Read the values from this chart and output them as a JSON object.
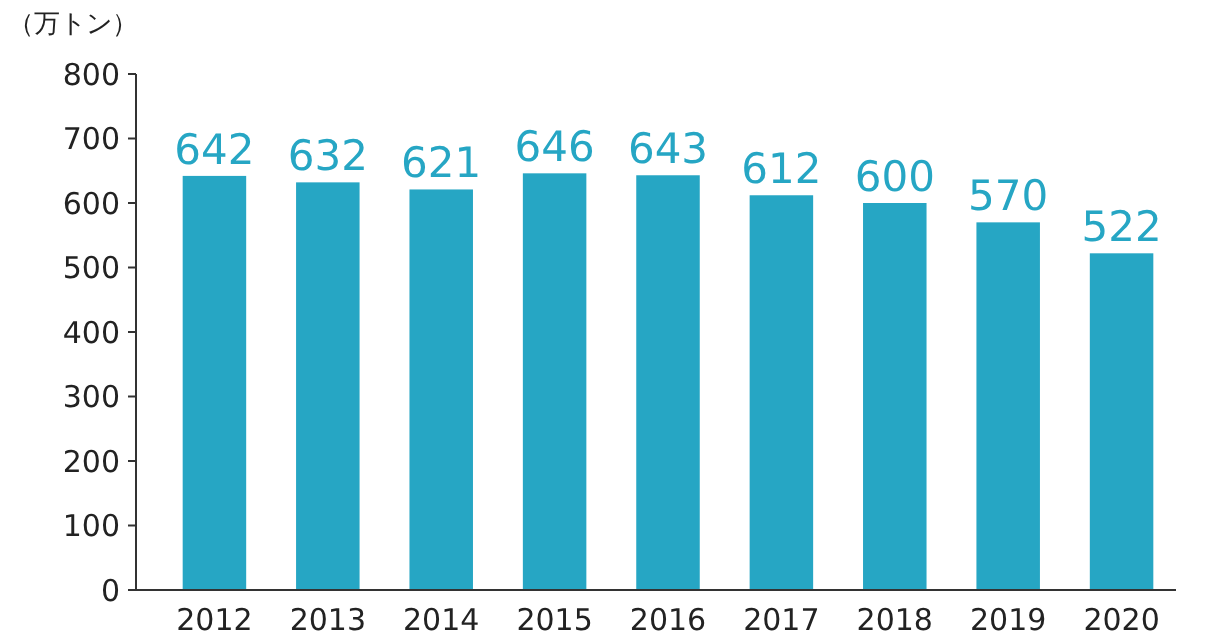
{
  "chart_data": {
    "type": "bar",
    "ylabel": "（万トン）",
    "categories": [
      "2012",
      "2013",
      "2014",
      "2015",
      "2016",
      "2017",
      "2018",
      "2019",
      "2020"
    ],
    "values": [
      642,
      632,
      621,
      646,
      643,
      612,
      600,
      570,
      522
    ],
    "color": "#26a6c4",
    "ylim": [
      0,
      800
    ],
    "yticks": [
      0,
      100,
      200,
      300,
      400,
      500,
      600,
      700,
      800
    ],
    "data_labels": true,
    "grid": false
  }
}
